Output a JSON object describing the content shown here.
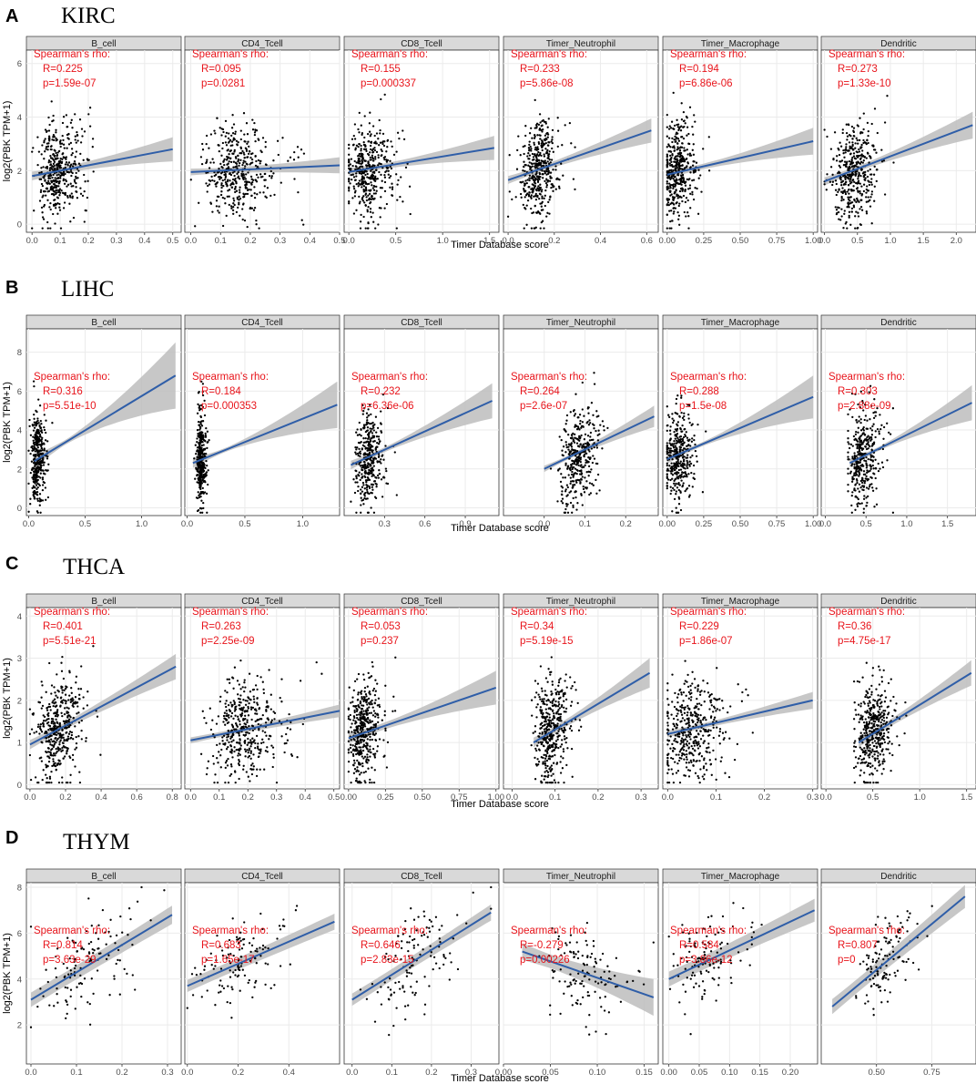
{
  "panel_letters": [
    "A",
    "B",
    "C",
    "D"
  ],
  "cancer_types": [
    "KIRC",
    "LIHC",
    "THCA",
    "THYM"
  ],
  "facet_labels": [
    "B_cell",
    "CD4_Tcell",
    "CD8_Tcell",
    "Timer_Neutrophil",
    "Timer_Macrophage",
    "Dendritic"
  ],
  "xlabel": "Timer Database score",
  "ylabel": "log2(PBK TPM+1)",
  "annotation_header": "Spearman's rho:",
  "colors": {
    "points": "#000000",
    "fit_line": "#2f5ea8",
    "confidence_band": "#bdbdbd",
    "annotation": "#e8141b",
    "panel_background": "#ffffff",
    "grid": "#ebebeb",
    "strip_fill": "#d9d9d9"
  },
  "chart_data": [
    {
      "type": "scatter",
      "panel": "A",
      "cancer": "KIRC",
      "ylim": [
        -0.3,
        6.5
      ],
      "yticks": [
        "0",
        "2",
        "4",
        "6"
      ],
      "grid": true,
      "facets": [
        {
          "name": "B_cell",
          "xlim": [
            -0.02,
            0.53
          ],
          "xticks": [
            "0.0",
            "0.1",
            "0.2",
            "0.3",
            "0.4",
            "0.5"
          ],
          "R": "0.225",
          "p": "1.59e-07",
          "fit": [
            [
              0.0,
              1.8
            ],
            [
              0.5,
              2.8
            ]
          ],
          "ci": [
            0.12,
            0.45
          ],
          "cloud": {
            "xc": 0.09,
            "xs": 0.06,
            "xmin": 0.0,
            "xmax": 0.5,
            "yc": 2.0,
            "ys": 0.9,
            "n": 420
          }
        },
        {
          "name": "CD4_Tcell",
          "xlim": [
            -0.02,
            0.5
          ],
          "xticks": [
            "0.0",
            "0.1",
            "0.2",
            "0.3",
            "0.4",
            "0.5"
          ],
          "R": "0.095",
          "p": "0.0281",
          "fit": [
            [
              0.0,
              1.95
            ],
            [
              0.5,
              2.2
            ]
          ],
          "ci": [
            0.1,
            0.3
          ],
          "cloud": {
            "xc": 0.15,
            "xs": 0.09,
            "xmin": 0.0,
            "xmax": 0.48,
            "yc": 2.0,
            "ys": 0.9,
            "n": 420
          }
        },
        {
          "name": "CD8_Tcell",
          "xlim": [
            -0.05,
            1.6
          ],
          "xticks": [
            "0.0",
            "0.5",
            "1.0",
            "1.5"
          ],
          "R": "0.155",
          "p": "0.000337",
          "fit": [
            [
              0.0,
              1.95
            ],
            [
              1.55,
              2.85
            ]
          ],
          "ci": [
            0.1,
            0.45
          ],
          "cloud": {
            "xc": 0.2,
            "xs": 0.2,
            "xmin": 0.0,
            "xmax": 1.5,
            "yc": 2.0,
            "ys": 0.9,
            "n": 420
          }
        },
        {
          "name": "Timer_Neutrophil",
          "xlim": [
            -0.02,
            0.65
          ],
          "xticks": [
            "0.0",
            "0.2",
            "0.4",
            "0.6"
          ],
          "R": "0.233",
          "p": "5.86e-08",
          "fit": [
            [
              0.0,
              1.65
            ],
            [
              0.62,
              3.5
            ]
          ],
          "ci": [
            0.1,
            0.45
          ],
          "cloud": {
            "xc": 0.13,
            "xs": 0.06,
            "xmin": 0.0,
            "xmax": 0.6,
            "yc": 2.0,
            "ys": 0.9,
            "n": 420
          }
        },
        {
          "name": "Timer_Macrophage",
          "xlim": [
            -0.03,
            1.03
          ],
          "xticks": [
            "0.00",
            "0.25",
            "0.50",
            "0.75",
            "1.00"
          ],
          "R": "0.194",
          "p": "6.86e-06",
          "fit": [
            [
              0.0,
              1.85
            ],
            [
              1.0,
              3.1
            ]
          ],
          "ci": [
            0.1,
            0.5
          ],
          "cloud": {
            "xc": 0.07,
            "xs": 0.08,
            "xmin": 0.0,
            "xmax": 0.95,
            "yc": 2.0,
            "ys": 0.9,
            "n": 420
          }
        },
        {
          "name": "Dendritic",
          "xlim": [
            -0.05,
            2.3
          ],
          "xticks": [
            "0.0",
            "0.5",
            "1.0",
            "1.5",
            "2.0"
          ],
          "R": "0.273",
          "p": "1.33e-10",
          "fit": [
            [
              0.0,
              1.6
            ],
            [
              2.25,
              3.7
            ]
          ],
          "ci": [
            0.1,
            0.5
          ],
          "cloud": {
            "xc": 0.45,
            "xs": 0.25,
            "xmin": 0.0,
            "xmax": 2.2,
            "yc": 2.0,
            "ys": 0.9,
            "n": 420
          }
        }
      ]
    },
    {
      "type": "scatter",
      "panel": "B",
      "cancer": "LIHC",
      "ylim": [
        -0.4,
        9.2
      ],
      "yticks": [
        "0",
        "2",
        "4",
        "6",
        "8"
      ],
      "grid": true,
      "facets": [
        {
          "name": "B_cell",
          "xlim": [
            -0.02,
            1.35
          ],
          "xticks": [
            "0.0",
            "0.5",
            "1.0"
          ],
          "R": "0.316",
          "p": "5.51e-10",
          "fit": [
            [
              0.05,
              2.4
            ],
            [
              1.3,
              6.8
            ]
          ],
          "ci": [
            0.12,
            1.7
          ],
          "cloud": {
            "xc": 0.08,
            "xs": 0.05,
            "xmin": 0.0,
            "xmax": 1.3,
            "yc": 2.6,
            "ys": 1.2,
            "n": 360
          }
        },
        {
          "name": "CD4_Tcell",
          "xlim": [
            -0.02,
            1.32
          ],
          "xticks": [
            "0.0",
            "0.5",
            "1.0"
          ],
          "R": "0.184",
          "p": "0.000353",
          "fit": [
            [
              0.05,
              2.3
            ],
            [
              1.3,
              5.3
            ]
          ],
          "ci": [
            0.1,
            1.2
          ],
          "cloud": {
            "xc": 0.12,
            "xs": 0.03,
            "xmin": 0.0,
            "xmax": 1.3,
            "yc": 2.6,
            "ys": 1.2,
            "n": 360
          }
        },
        {
          "name": "CD8_Tcell",
          "xlim": [
            0.0,
            1.15
          ],
          "xticks": [
            "0.3",
            "0.6",
            "0.9"
          ],
          "R": "0.232",
          "p": "6.36e-06",
          "fit": [
            [
              0.05,
              2.2
            ],
            [
              1.1,
              5.5
            ]
          ],
          "ci": [
            0.12,
            0.9
          ],
          "cloud": {
            "xc": 0.18,
            "xs": 0.08,
            "xmin": 0.05,
            "xmax": 1.1,
            "yc": 2.6,
            "ys": 1.2,
            "n": 360
          }
        },
        {
          "name": "Timer_Neutrophil",
          "xlim": [
            -0.1,
            0.28
          ],
          "xticks": [
            "0.0",
            "0.1",
            "0.2"
          ],
          "R": "0.264",
          "p": "2.6e-07",
          "fit": [
            [
              0.0,
              2.0
            ],
            [
              0.27,
              4.7
            ]
          ],
          "ci": [
            0.1,
            0.55
          ],
          "cloud": {
            "xc": 0.08,
            "xs": 0.035,
            "xmin": 0.0,
            "xmax": 0.27,
            "yc": 2.6,
            "ys": 1.2,
            "n": 360
          }
        },
        {
          "name": "Timer_Macrophage",
          "xlim": [
            -0.03,
            1.03
          ],
          "xticks": [
            "0.00",
            "0.25",
            "0.50",
            "0.75",
            "1.00"
          ],
          "R": "0.288",
          "p": "1.5e-08",
          "fit": [
            [
              0.0,
              2.5
            ],
            [
              1.0,
              5.7
            ]
          ],
          "ci": [
            0.1,
            1.1
          ],
          "cloud": {
            "xc": 0.07,
            "xs": 0.07,
            "xmin": 0.0,
            "xmax": 1.0,
            "yc": 2.6,
            "ys": 1.2,
            "n": 360
          }
        },
        {
          "name": "Dendritic",
          "xlim": [
            -0.05,
            1.85
          ],
          "xticks": [
            "0.0",
            "0.5",
            "1.0",
            "1.5"
          ],
          "R": "0.303",
          "p": "2.88e-09",
          "fit": [
            [
              0.3,
              2.3
            ],
            [
              1.8,
              5.4
            ]
          ],
          "ci": [
            0.1,
            0.9
          ],
          "cloud": {
            "xc": 0.45,
            "xs": 0.15,
            "xmin": 0.28,
            "xmax": 1.8,
            "yc": 2.6,
            "ys": 1.2,
            "n": 360
          }
        }
      ]
    },
    {
      "type": "scatter",
      "panel": "C",
      "cancer": "THCA",
      "ylim": [
        -0.1,
        4.2
      ],
      "yticks": [
        "0",
        "1",
        "2",
        "3",
        "4"
      ],
      "grid": true,
      "facets": [
        {
          "name": "B_cell",
          "xlim": [
            -0.02,
            0.85
          ],
          "xticks": [
            "0.0",
            "0.2",
            "0.4",
            "0.6",
            "0.8"
          ],
          "R": "0.401",
          "p": "5.51e-21",
          "fit": [
            [
              0.0,
              0.95
            ],
            [
              0.82,
              2.8
            ]
          ],
          "ci": [
            0.08,
            0.3
          ],
          "cloud": {
            "xc": 0.15,
            "xs": 0.1,
            "xmin": 0.0,
            "xmax": 0.8,
            "yc": 1.3,
            "ys": 0.6,
            "n": 420
          }
        },
        {
          "name": "CD4_Tcell",
          "xlim": [
            -0.02,
            0.52
          ],
          "xticks": [
            "0.0",
            "0.1",
            "0.2",
            "0.3",
            "0.4",
            "0.5"
          ],
          "R": "0.263",
          "p": "2.25e-09",
          "fit": [
            [
              0.0,
              1.05
            ],
            [
              0.52,
              1.75
            ]
          ],
          "ci": [
            0.06,
            0.15
          ],
          "cloud": {
            "xc": 0.18,
            "xs": 0.09,
            "xmin": 0.0,
            "xmax": 0.5,
            "yc": 1.3,
            "ys": 0.6,
            "n": 420
          }
        },
        {
          "name": "CD8_Tcell",
          "xlim": [
            -0.03,
            1.02
          ],
          "xticks": [
            "0.00",
            "0.25",
            "0.50",
            "0.75",
            "1.00"
          ],
          "R": "0.053",
          "p": "0.237",
          "fit": [
            [
              0.0,
              1.1
            ],
            [
              1.0,
              2.3
            ]
          ],
          "ci": [
            0.08,
            0.4
          ],
          "cloud": {
            "xc": 0.1,
            "xs": 0.08,
            "xmin": 0.0,
            "xmax": 1.0,
            "yc": 1.3,
            "ys": 0.6,
            "n": 420
          }
        },
        {
          "name": "Timer_Neutrophil",
          "xlim": [
            -0.02,
            0.34
          ],
          "xticks": [
            "0.0",
            "0.1",
            "0.2",
            "0.3"
          ],
          "R": "0.34",
          "p": "5.19e-15",
          "fit": [
            [
              0.05,
              1.0
            ],
            [
              0.32,
              2.65
            ]
          ],
          "ci": [
            0.08,
            0.35
          ],
          "cloud": {
            "xc": 0.09,
            "xs": 0.03,
            "xmin": 0.04,
            "xmax": 0.32,
            "yc": 1.3,
            "ys": 0.6,
            "n": 420
          }
        },
        {
          "name": "Timer_Macrophage",
          "xlim": [
            -0.01,
            0.31
          ],
          "xticks": [
            "0.0",
            "0.1",
            "0.2",
            "0.3"
          ],
          "R": "0.229",
          "p": "1.86e-07",
          "fit": [
            [
              0.0,
              1.2
            ],
            [
              0.3,
              2.0
            ]
          ],
          "ci": [
            0.06,
            0.2
          ],
          "cloud": {
            "xc": 0.05,
            "xs": 0.05,
            "xmin": 0.0,
            "xmax": 0.3,
            "yc": 1.3,
            "ys": 0.6,
            "n": 420
          }
        },
        {
          "name": "Dendritic",
          "xlim": [
            -0.05,
            1.6
          ],
          "xticks": [
            "0.0",
            "0.5",
            "1.0",
            "1.5"
          ],
          "R": "0.36",
          "p": "4.75e-17",
          "fit": [
            [
              0.35,
              1.0
            ],
            [
              1.55,
              2.65
            ]
          ],
          "ci": [
            0.08,
            0.3
          ],
          "cloud": {
            "xc": 0.5,
            "xs": 0.15,
            "xmin": 0.3,
            "xmax": 1.5,
            "yc": 1.3,
            "ys": 0.6,
            "n": 420
          }
        }
      ]
    },
    {
      "type": "scatter",
      "panel": "D",
      "cancer": "THYM",
      "ylim": [
        0.3,
        8.2
      ],
      "yticks": [
        "2",
        "4",
        "6",
        "8"
      ],
      "grid": true,
      "facets": [
        {
          "name": "B_cell",
          "xlim": [
            -0.01,
            0.33
          ],
          "xticks": [
            "0.0",
            "0.1",
            "0.2",
            "0.3"
          ],
          "R": "0.814",
          "p": "3.63e-29",
          "fit": [
            [
              0.0,
              3.1
            ],
            [
              0.31,
              6.8
            ]
          ],
          "ci": [
            0.3,
            0.4
          ],
          "cloud": {
            "xc": 0.12,
            "xs": 0.08,
            "xmin": 0.0,
            "xmax": 0.32,
            "yc": 4.7,
            "ys": 1.0,
            "n": 120,
            "slope": 11.9,
            "x0": 0.0,
            "y0": 3.1
          }
        },
        {
          "name": "CD4_Tcell",
          "xlim": [
            -0.01,
            0.6
          ],
          "xticks": [
            "0.0",
            "0.2",
            "0.4"
          ],
          "R": "0.683",
          "p": "1.65e-17",
          "fit": [
            [
              0.0,
              3.7
            ],
            [
              0.58,
              6.5
            ]
          ],
          "ci": [
            0.25,
            0.35
          ],
          "cloud": {
            "xc": 0.2,
            "xs": 0.13,
            "xmin": 0.0,
            "xmax": 0.57,
            "yc": 4.7,
            "ys": 1.0,
            "n": 120,
            "slope": 4.8,
            "x0": 0.0,
            "y0": 3.7
          }
        },
        {
          "name": "CD8_Tcell",
          "xlim": [
            -0.02,
            0.37
          ],
          "xticks": [
            "0.0",
            "0.1",
            "0.2",
            "0.3"
          ],
          "R": "0.646",
          "p": "2.83e-15",
          "fit": [
            [
              0.0,
              3.1
            ],
            [
              0.35,
              6.9
            ]
          ],
          "ci": [
            0.25,
            0.35
          ],
          "cloud": {
            "xc": 0.15,
            "xs": 0.09,
            "xmin": 0.0,
            "xmax": 0.35,
            "yc": 4.7,
            "ys": 1.0,
            "n": 120,
            "slope": 10.8,
            "x0": 0.0,
            "y0": 3.1
          }
        },
        {
          "name": "Timer_Neutrophil",
          "xlim": [
            0.0,
            0.165
          ],
          "xticks": [
            "0.00",
            "0.05",
            "0.10",
            "0.15"
          ],
          "R": "-0.279",
          "p": "0.00226",
          "fit": [
            [
              0.02,
              5.2
            ],
            [
              0.16,
              3.2
            ]
          ],
          "ci": [
            0.3,
            0.8
          ],
          "cloud": {
            "xc": 0.085,
            "xs": 0.03,
            "xmin": 0.03,
            "xmax": 0.16,
            "yc": 4.2,
            "ys": 1.0,
            "n": 120,
            "slope": -14.0,
            "x0": 0.02,
            "y0": 5.2
          }
        },
        {
          "name": "Timer_Macrophage",
          "xlim": [
            -0.01,
            0.245
          ],
          "xticks": [
            "0.00",
            "0.05",
            "0.10",
            "0.15",
            "0.20"
          ],
          "R": "0.584",
          "p": "3.86e-12",
          "fit": [
            [
              0.0,
              4.0
            ],
            [
              0.24,
              7.0
            ]
          ],
          "ci": [
            0.3,
            0.5
          ],
          "cloud": {
            "xc": 0.06,
            "xs": 0.05,
            "xmin": 0.0,
            "xmax": 0.23,
            "yc": 4.7,
            "ys": 1.0,
            "n": 120,
            "slope": 12.5,
            "x0": 0.0,
            "y0": 4.0
          }
        },
        {
          "name": "Dendritic",
          "xlim": [
            0.25,
            0.95
          ],
          "xticks": [
            "0.50",
            "0.75"
          ],
          "R": "0.807",
          "p": "0",
          "fit": [
            [
              0.3,
              2.8
            ],
            [
              0.9,
              7.6
            ]
          ],
          "ci": [
            0.3,
            0.5
          ],
          "cloud": {
            "xc": 0.55,
            "xs": 0.1,
            "xmin": 0.3,
            "xmax": 0.88,
            "yc": 4.7,
            "ys": 1.0,
            "n": 120,
            "slope": 8.0,
            "x0": 0.3,
            "y0": 2.8
          }
        }
      ]
    }
  ]
}
